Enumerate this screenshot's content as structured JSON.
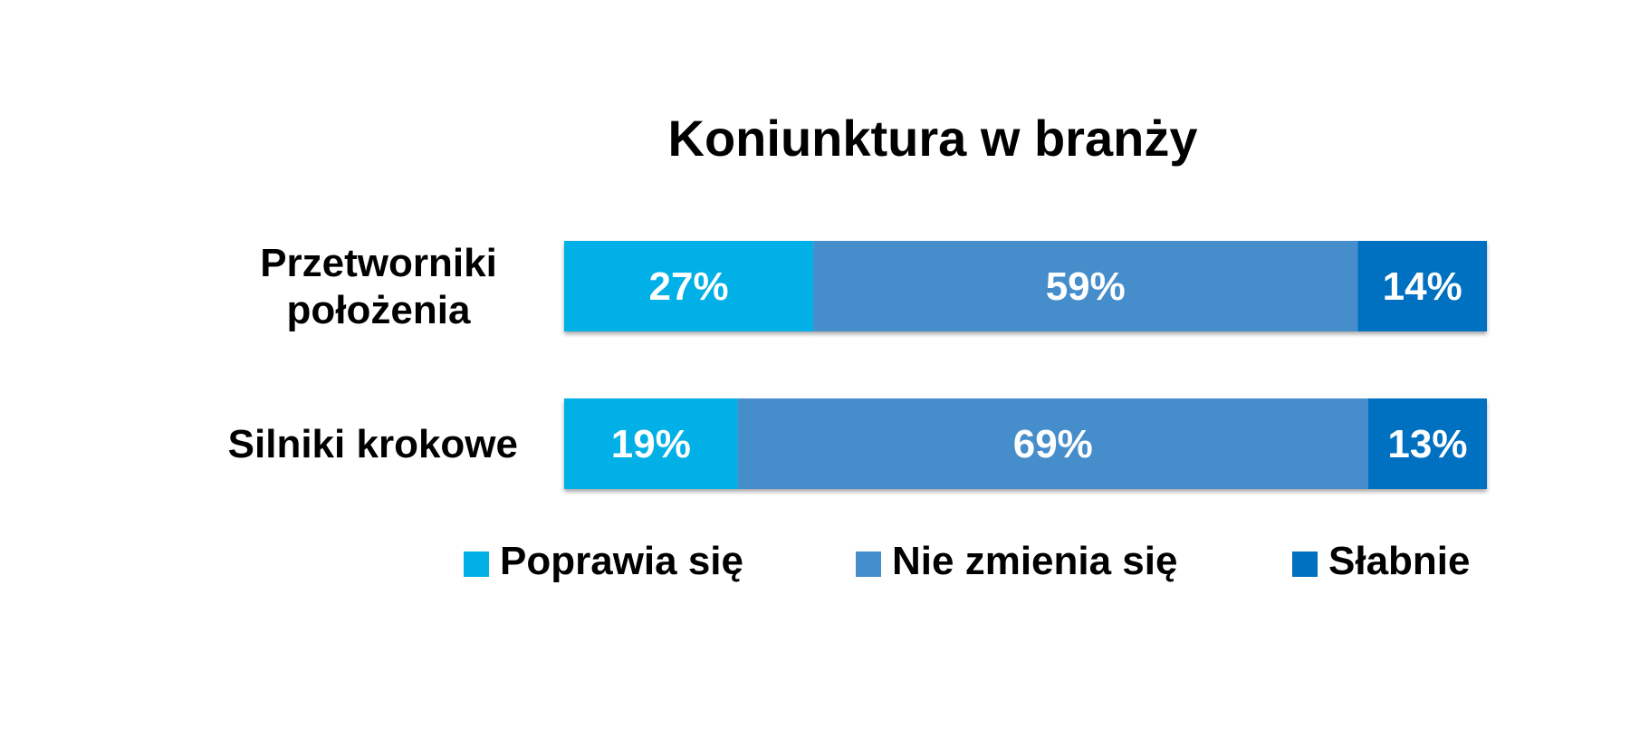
{
  "chart_data": {
    "type": "bar",
    "orientation": "horizontal",
    "stacked": true,
    "title": "Koniunktura w branży",
    "categories": [
      "Przetworniki\npołożenia",
      "Silniki krokowe"
    ],
    "series": [
      {
        "name": "Poprawia się",
        "values": [
          27,
          19
        ],
        "labels": [
          "27%",
          "19%"
        ],
        "color": "#00b0e6"
      },
      {
        "name": "Nie zmienia się",
        "values": [
          59,
          69
        ],
        "labels": [
          "59%",
          "69%"
        ],
        "color": "#448ecb"
      },
      {
        "name": "Słabnie",
        "values": [
          14,
          13
        ],
        "labels": [
          "14%",
          "13%"
        ],
        "color": "#0070c0"
      }
    ],
    "legend_position": "bottom",
    "grid": false,
    "axis_visible": false
  }
}
